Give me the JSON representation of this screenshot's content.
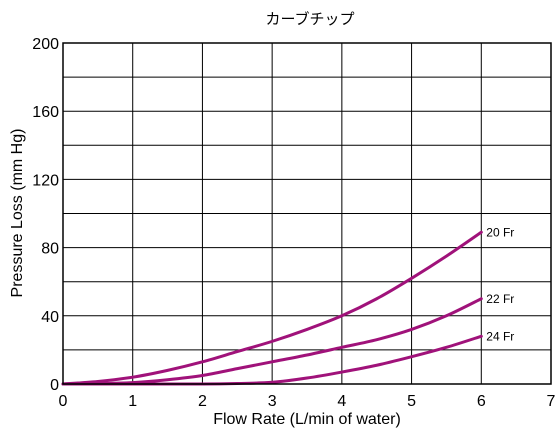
{
  "chart_data": {
    "type": "line",
    "title": "カーブチップ",
    "xlabel": "Flow Rate (L/min of water)",
    "ylabel": "Pressure Loss (mm Hg)",
    "xlim": [
      0,
      7
    ],
    "ylim": [
      0,
      200
    ],
    "x_ticks": [
      "0",
      "1",
      "2",
      "3",
      "4",
      "5",
      "6",
      "7"
    ],
    "y_ticks": [
      "0",
      "40",
      "80",
      "120",
      "160",
      "200"
    ],
    "grid": true,
    "line_color": "#a0127a",
    "series": [
      {
        "name": "20 Fr",
        "x": [
          0,
          0.5,
          1,
          1.5,
          2,
          2.5,
          3,
          3.5,
          4,
          4.5,
          5,
          5.5,
          6
        ],
        "y": [
          0,
          1.5,
          4,
          8,
          13,
          19,
          25,
          32,
          40,
          50,
          62,
          75,
          89
        ]
      },
      {
        "name": "22 Fr",
        "x": [
          0,
          0.5,
          1,
          1.5,
          2,
          2.5,
          3,
          3.5,
          4,
          4.5,
          5,
          5.5,
          6
        ],
        "y": [
          0,
          0.3,
          0.8,
          2.5,
          5,
          9,
          13,
          17,
          21.5,
          26,
          32,
          40,
          50
        ]
      },
      {
        "name": "24 Fr",
        "x": [
          0,
          1,
          2,
          2.5,
          3,
          3.5,
          4,
          4.5,
          5,
          5.5,
          6
        ],
        "y": [
          0,
          0,
          0,
          0.3,
          1,
          3.5,
          7,
          11,
          16,
          21.5,
          28
        ]
      }
    ]
  }
}
